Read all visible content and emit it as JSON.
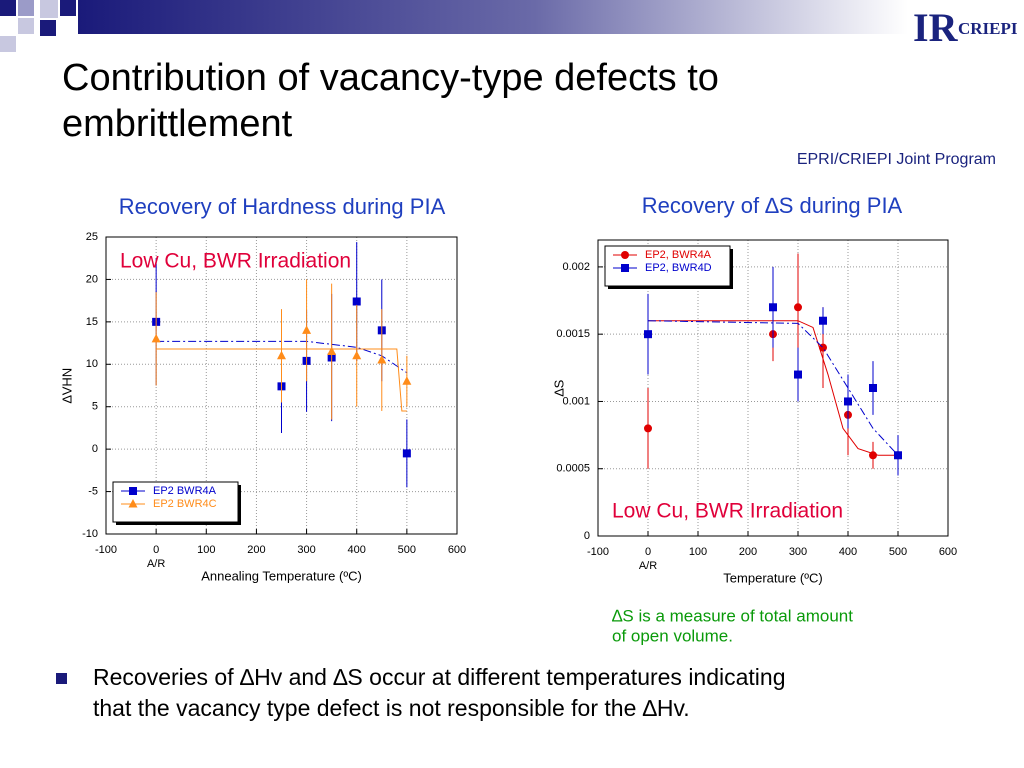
{
  "slide": {
    "title_lines": [
      "Contribution of vacancy-type defects to",
      "embrittlement"
    ],
    "program": "EPRI/CRIEPI Joint Program",
    "logo": {
      "mark": "IR",
      "name": "CRIEPI"
    },
    "note_lines": [
      "∆S is a measure of total amount",
      "of open volume."
    ],
    "bullet_lines": [
      "Recoveries of ∆Hv and ∆S occur at different temperatures indicating",
      "that the vacancy type defect is not responsible for the ∆Hv."
    ]
  },
  "chart_data": [
    {
      "type": "scatter",
      "title": "Recovery of Hardness during PIA",
      "annotation": "Low Cu, BWR Irradiation",
      "y_label": "∆VHN",
      "x_label": "Annealing Temperature (ºC)",
      "x_annotation": "A/R",
      "xlim": [
        -100,
        600
      ],
      "xticks": [
        -100,
        0,
        100,
        200,
        300,
        400,
        500,
        600
      ],
      "ylim": [
        -10,
        25
      ],
      "yticks": [
        -10,
        -5,
        0,
        5,
        10,
        15,
        20,
        25
      ],
      "grid": true,
      "legend": "lower left",
      "x": [
        0,
        250,
        300,
        350,
        400,
        450,
        500
      ],
      "series": [
        {
          "name": "EP2 BWR4A",
          "color": "#0000cc",
          "marker": "square",
          "values": [
            15,
            7.4,
            10.4,
            10.8,
            17.4,
            14,
            -0.5
          ],
          "errors": [
            7.5,
            5.5,
            6,
            7.5,
            7,
            6,
            4
          ],
          "fit_x": [
            0,
            300,
            400,
            450,
            500
          ],
          "fit_values": [
            12.7,
            12.7,
            12,
            11,
            9
          ],
          "fit_style": "dashdot"
        },
        {
          "name": "EP2 BWR4C",
          "color": "#ff8c1a",
          "marker": "triangle",
          "values": [
            13,
            11,
            14,
            11.5,
            11,
            10.5,
            8
          ],
          "errors": [
            5.5,
            5.5,
            6,
            8,
            6,
            6,
            3
          ],
          "fit_x": [
            0,
            480,
            490,
            500
          ],
          "fit_values": [
            11.8,
            11.8,
            4.5,
            4.5
          ],
          "fit_style": "solid"
        }
      ]
    },
    {
      "type": "scatter",
      "title": "Recovery of ∆S during PIA",
      "annotation": "Low Cu, BWR Irradiation",
      "y_label": "∆S",
      "x_label": "Temperature (ºC)",
      "x_annotation": "A/R",
      "xlim": [
        -100,
        600
      ],
      "xticks": [
        -100,
        0,
        100,
        200,
        300,
        400,
        500,
        600
      ],
      "ylim": [
        0,
        0.0022
      ],
      "yticks": [
        0,
        0.0005,
        0.001,
        0.0015,
        0.002
      ],
      "grid": true,
      "legend": "upper left",
      "x": [
        0,
        250,
        300,
        350,
        400,
        450,
        500
      ],
      "series": [
        {
          "name": "EP2, BWR4A",
          "color": "#e00000",
          "marker": "circle",
          "values": [
            0.0008,
            0.0015,
            0.0017,
            0.0014,
            0.0009,
            0.0006,
            0.0006
          ],
          "errors": [
            0.0003,
            0.0002,
            0.0004,
            0.0003,
            0.0003,
            0.0001,
            0.0001
          ],
          "fit_x": [
            0,
            300,
            330,
            360,
            390,
            420,
            460,
            500
          ],
          "fit_values": [
            0.0016,
            0.0016,
            0.00155,
            0.0012,
            0.0008,
            0.00065,
            0.0006,
            0.0006
          ],
          "fit_style": "solid"
        },
        {
          "name": "EP2, BWR4D",
          "color": "#0000cc",
          "marker": "square",
          "values": [
            0.0015,
            0.0017,
            0.0012,
            0.0016,
            0.001,
            0.0011,
            0.0006
          ],
          "errors": [
            0.0003,
            0.0003,
            0.0002,
            0.0001,
            0.0002,
            0.0002,
            0.00015
          ],
          "fit_x": [
            0,
            300,
            350,
            400,
            450,
            500
          ],
          "fit_values": [
            0.0016,
            0.00158,
            0.0014,
            0.0011,
            0.0008,
            0.0006
          ],
          "fit_style": "dashdot"
        }
      ]
    }
  ]
}
